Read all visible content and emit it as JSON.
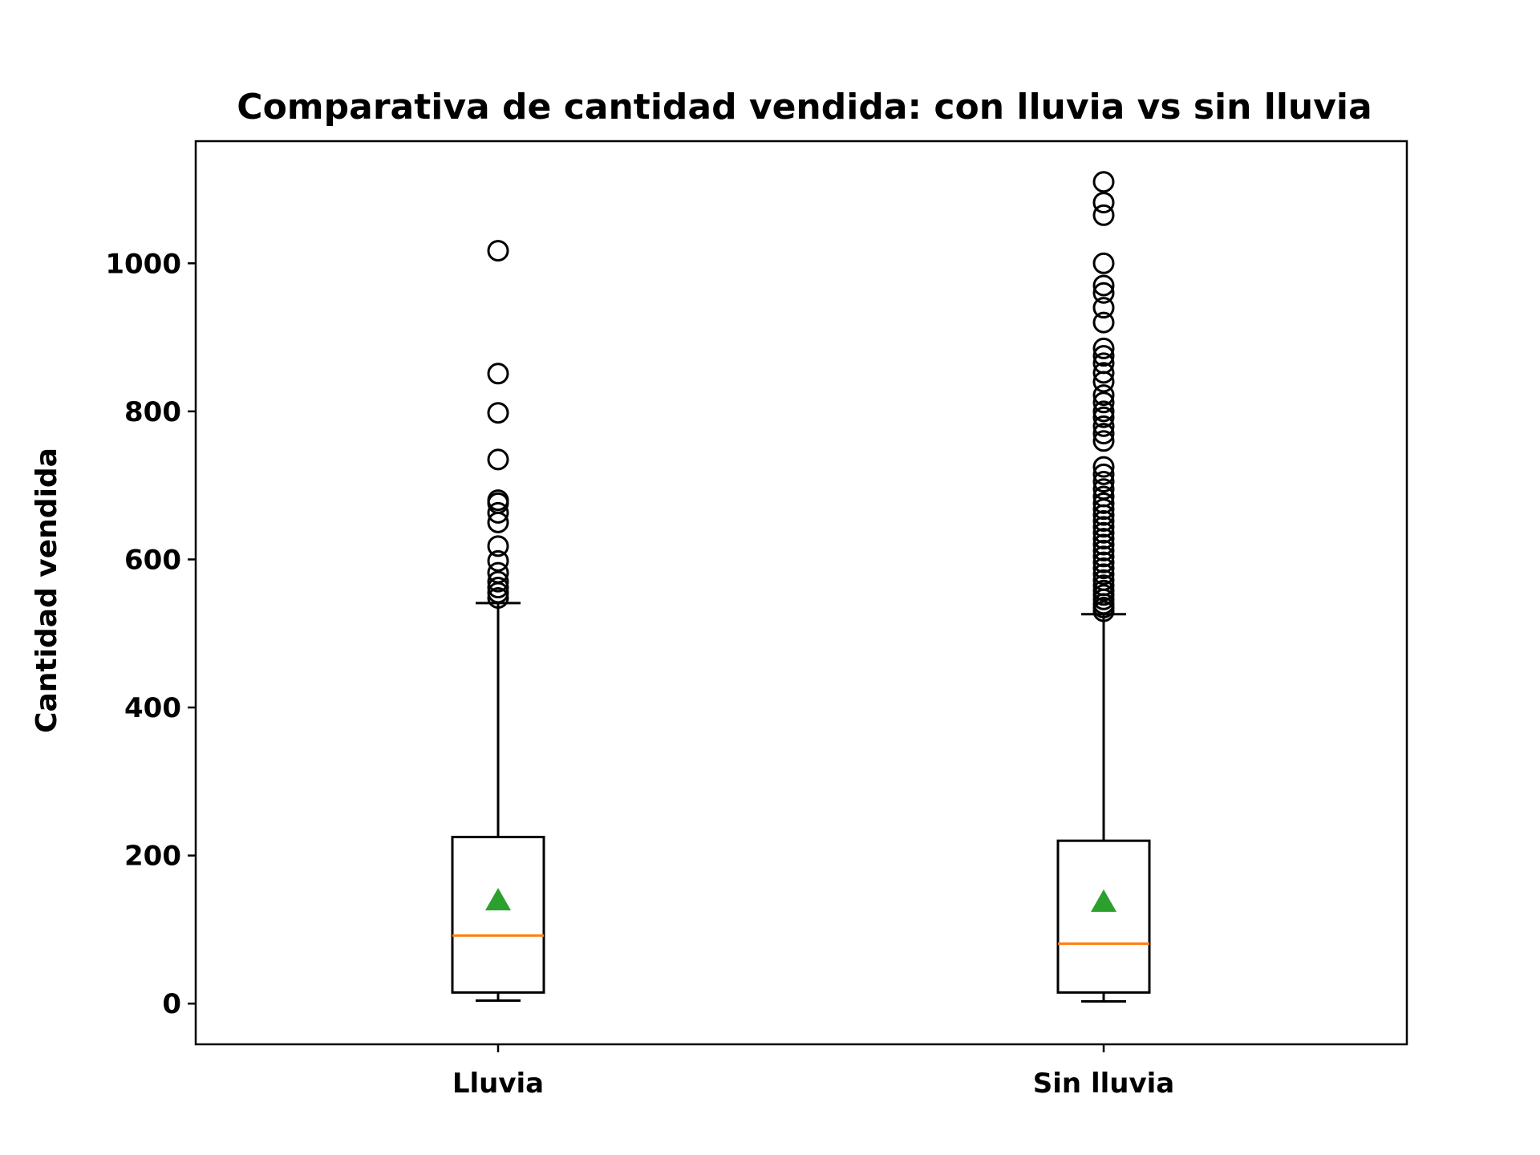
{
  "chart_data": {
    "type": "boxplot",
    "title": "Comparativa de cantidad vendida: con lluvia vs sin lluvia",
    "xlabel": "",
    "ylabel": "Cantidad vendida",
    "ylim": [
      -55,
      1165
    ],
    "yticks": [
      0,
      200,
      400,
      600,
      800,
      1000
    ],
    "grid": false,
    "colors": {
      "median": "#ff7f0e",
      "mean": "#2ca02c",
      "box": "#000000"
    },
    "categories": [
      "Lluvia",
      "Sin lluvia"
    ],
    "boxes": [
      {
        "label": "Lluvia",
        "whisker_low": 4,
        "q1": 15,
        "median": 92,
        "q3": 225,
        "whisker_high": 541,
        "mean": 140,
        "outliers": [
          548,
          555,
          562,
          570,
          582,
          598,
          618,
          650,
          663,
          676,
          680,
          735,
          798,
          851,
          1017
        ]
      },
      {
        "label": "Sin lluvia",
        "whisker_low": 3,
        "q1": 15,
        "median": 81,
        "q3": 220,
        "whisker_high": 526,
        "mean": 138,
        "outliers": [
          530,
          535,
          540,
          546,
          552,
          558,
          565,
          572,
          580,
          588,
          596,
          604,
          612,
          620,
          628,
          636,
          644,
          652,
          660,
          668,
          676,
          685,
          695,
          705,
          715,
          725,
          760,
          770,
          780,
          792,
          800,
          812,
          822,
          840,
          852,
          865,
          875,
          885,
          920,
          940,
          960,
          970,
          1000,
          1065,
          1082,
          1110
        ]
      }
    ]
  }
}
